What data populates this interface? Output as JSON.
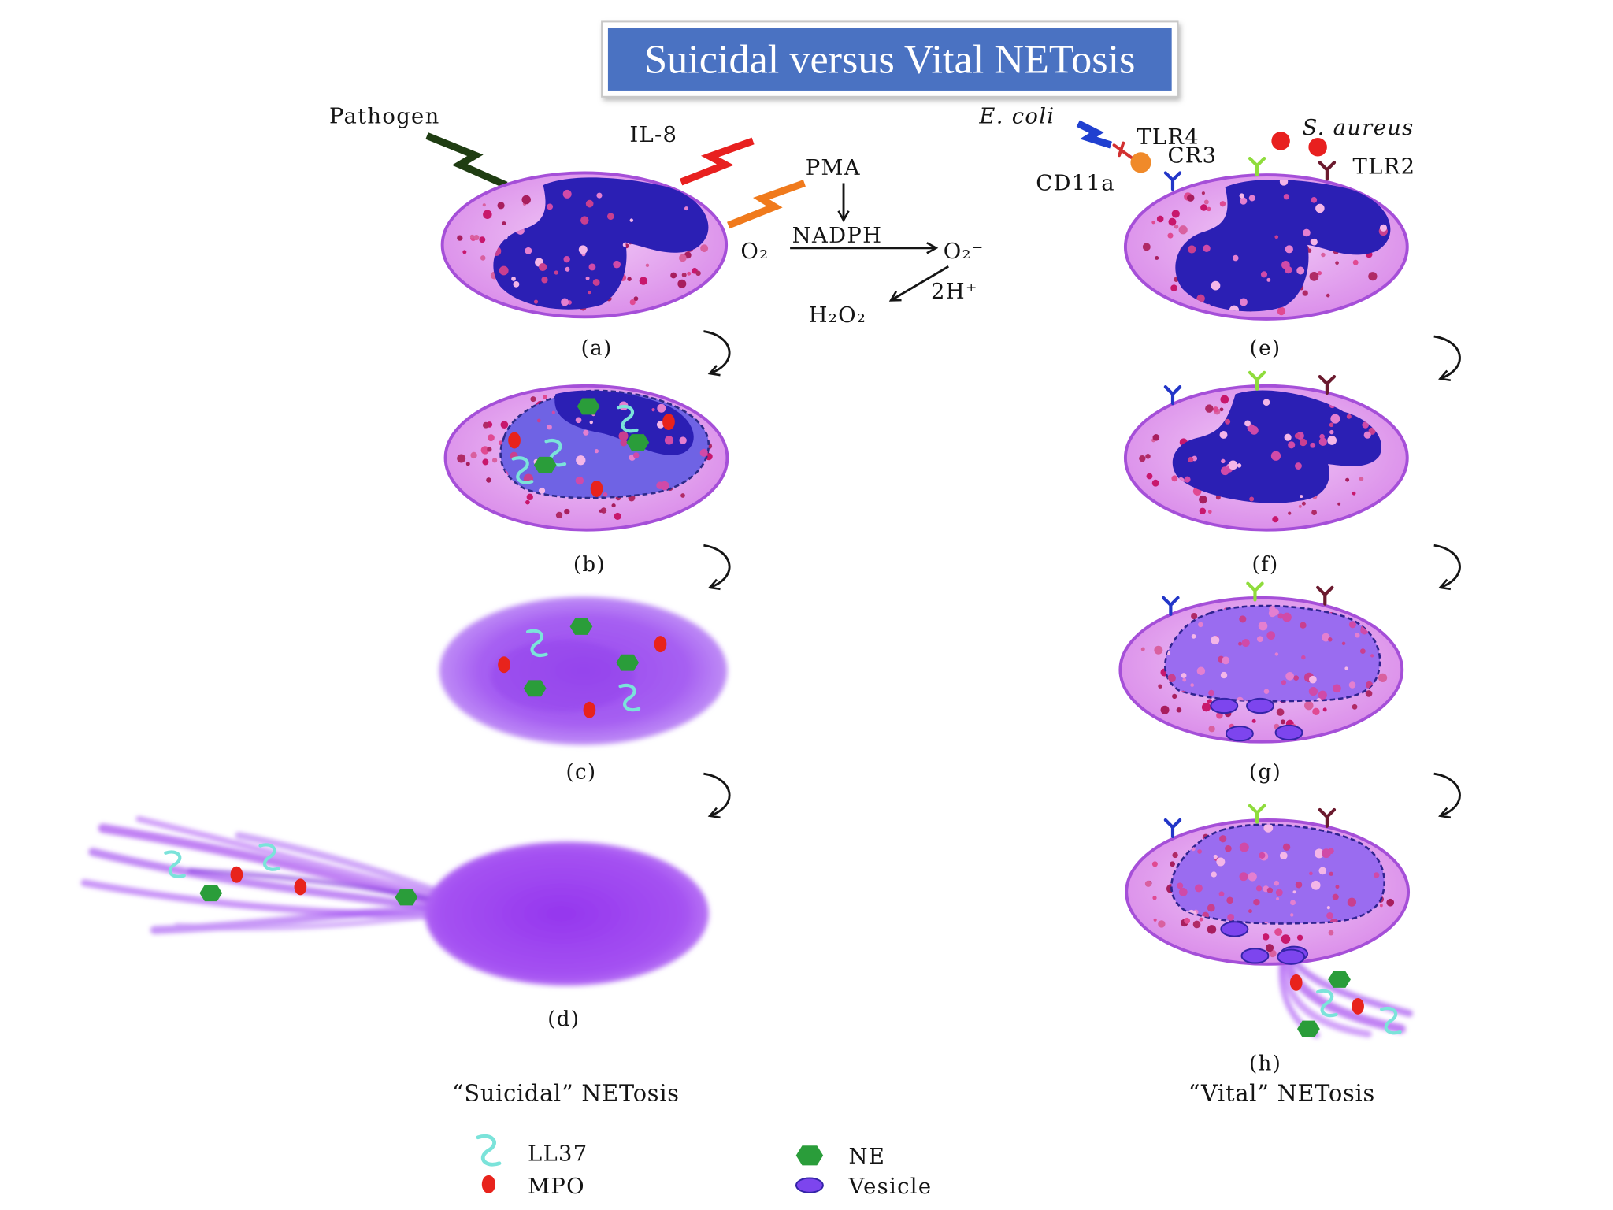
{
  "title": "Suicidal versus Vital NETosis",
  "colors": {
    "title_bg": "#4a72c2",
    "title_text": "#ffffff",
    "mpo": "#e8231c",
    "ne": "#2a9d3a",
    "ll37": "#7be3da",
    "vesicle": "#7d45ee",
    "nucleus": "#2b1fb4",
    "cytoplasm": "#dc92ea"
  },
  "suicidal": {
    "stimuli": {
      "pathogen": "Pathogen",
      "il8": "IL-8",
      "pma": "PMA"
    },
    "reaction": {
      "nadph": "NADPH",
      "o2": "O₂",
      "superoxide": "O₂⁻",
      "protons": "2H⁺",
      "h2o2": "H₂O₂"
    },
    "steps": [
      "(a)",
      "(b)",
      "(c)",
      "(d)"
    ],
    "caption": "“Suicidal” NETosis"
  },
  "vital": {
    "stimuli": {
      "ecoli": "E. coli",
      "saureus": "S. aureus"
    },
    "receptors": {
      "tlr4": "TLR4",
      "cr3": "CR3",
      "tlr2": "TLR2",
      "cd11a": "CD11a"
    },
    "steps": [
      "(e)",
      "(f)",
      "(g)",
      "(h)"
    ],
    "caption": "“Vital” NETosis"
  },
  "legend": [
    {
      "label": "LL37",
      "icon": "squiggle-icon"
    },
    {
      "label": "MPO",
      "icon": "red-oval-icon"
    },
    {
      "label": "NE",
      "icon": "green-hexagon-icon"
    },
    {
      "label": "Vesicle",
      "icon": "purple-oval-icon"
    }
  ]
}
